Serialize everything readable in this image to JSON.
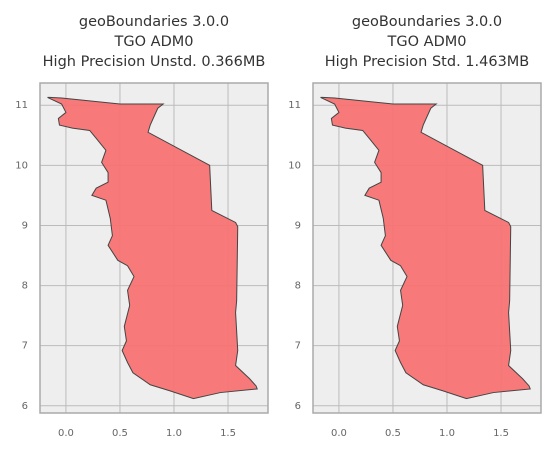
{
  "chart_data": [
    {
      "type": "map",
      "title": [
        "geoBoundaries 3.0.0",
        "TGO ADM0",
        "High Precision Unstd. 0.366MB"
      ],
      "series": [
        {
          "color": "#f87272",
          "x": [
            -0.15,
            -0.04,
            0.5,
            0.9,
            0.85,
            0.78,
            0.76,
            1.33,
            1.35,
            1.57,
            1.59,
            1.58,
            1.57,
            1.59,
            1.57,
            1.7,
            1.76,
            1.77,
            1.43,
            1.18,
            0.96,
            0.78,
            0.62,
            0.57,
            0.52,
            0.56,
            0.54,
            0.59,
            0.57,
            0.63,
            0.57,
            0.48,
            0.39,
            0.43,
            0.41,
            0.37,
            0.24,
            0.28,
            0.39,
            0.39,
            0.33,
            0.37,
            0.28,
            0.22,
            0.06,
            -0.06,
            -0.07,
            0.0,
            -0.04,
            -0.17
          ],
          "y": [
            11.13,
            11.12,
            11.02,
            11.02,
            10.95,
            10.67,
            10.55,
            10.0,
            9.25,
            9.05,
            8.98,
            7.75,
            7.55,
            6.92,
            6.67,
            6.45,
            6.33,
            6.28,
            6.22,
            6.12,
            6.25,
            6.35,
            6.55,
            6.72,
            6.92,
            7.08,
            7.32,
            7.67,
            7.92,
            8.15,
            8.33,
            8.42,
            8.67,
            8.83,
            9.12,
            9.42,
            9.5,
            9.62,
            9.72,
            9.88,
            10.05,
            10.25,
            10.45,
            10.58,
            10.62,
            10.67,
            10.78,
            10.88,
            11.02,
            11.13
          ]
        }
      ],
      "xlim": [
        -0.24,
        1.87
      ],
      "ylim": [
        5.88,
        11.37
      ],
      "xticks": [
        {
          "value": 0,
          "label": "0.0"
        },
        0.5,
        {
          "value": 1,
          "label": "1.0"
        },
        1.5
      ],
      "yticks": [
        6,
        7,
        8,
        9,
        10,
        11
      ],
      "grid": true
    },
    {
      "type": "map",
      "title": [
        "geoBoundaries 3.0.0",
        "TGO ADM0",
        "High Precision Std. 1.463MB"
      ],
      "series": [
        {
          "color": "#f87272",
          "x": [
            -0.15,
            -0.04,
            0.5,
            0.9,
            0.85,
            0.78,
            0.76,
            1.33,
            1.35,
            1.57,
            1.59,
            1.58,
            1.57,
            1.59,
            1.57,
            1.7,
            1.76,
            1.77,
            1.43,
            1.18,
            0.96,
            0.78,
            0.62,
            0.57,
            0.52,
            0.56,
            0.54,
            0.59,
            0.57,
            0.63,
            0.57,
            0.48,
            0.39,
            0.43,
            0.41,
            0.37,
            0.24,
            0.28,
            0.39,
            0.39,
            0.33,
            0.37,
            0.28,
            0.22,
            0.06,
            -0.06,
            -0.07,
            0.0,
            -0.04,
            -0.17
          ],
          "y": [
            11.13,
            11.12,
            11.02,
            11.02,
            10.95,
            10.67,
            10.55,
            10.0,
            9.25,
            9.05,
            8.98,
            7.75,
            7.55,
            6.92,
            6.67,
            6.45,
            6.33,
            6.28,
            6.22,
            6.12,
            6.25,
            6.35,
            6.55,
            6.72,
            6.92,
            7.08,
            7.32,
            7.67,
            7.92,
            8.15,
            8.33,
            8.42,
            8.67,
            8.83,
            9.12,
            9.42,
            9.5,
            9.62,
            9.72,
            9.88,
            10.05,
            10.25,
            10.45,
            10.58,
            10.62,
            10.67,
            10.78,
            10.88,
            11.02,
            11.13
          ]
        }
      ],
      "xlim": [
        -0.24,
        1.87
      ],
      "ylim": [
        5.88,
        11.37
      ],
      "xticks": [
        {
          "value": 0,
          "label": "0.0"
        },
        0.5,
        {
          "value": 1,
          "label": "1.0"
        },
        1.5
      ],
      "yticks": [
        6,
        7,
        8,
        9,
        10,
        11
      ],
      "grid": true
    }
  ]
}
